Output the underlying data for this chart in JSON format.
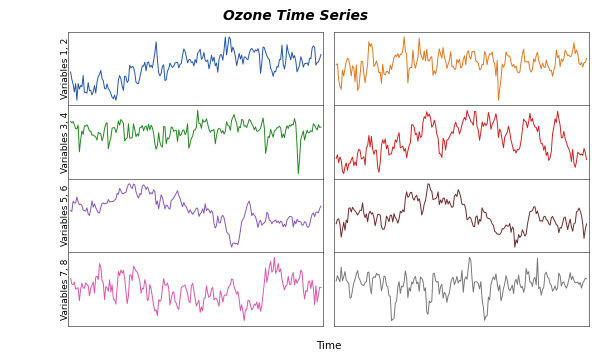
{
  "title": "Ozone Time Series",
  "xlabel": "Time",
  "n_points": 200,
  "row_labels": [
    "Variables 1, 2",
    "Variables 3, 4",
    "Variables 5, 6",
    "Variables 7, 8"
  ],
  "colors": [
    [
      "#2255aa",
      "#e07820"
    ],
    [
      "#228822",
      "#cc2222"
    ],
    [
      "#8855bb",
      "#6b2b2b"
    ],
    [
      "#dd55aa",
      "#777777"
    ]
  ],
  "background_color": "#ffffff",
  "linewidth": 0.7,
  "title_fontsize": 10,
  "label_fontsize": 6.5
}
